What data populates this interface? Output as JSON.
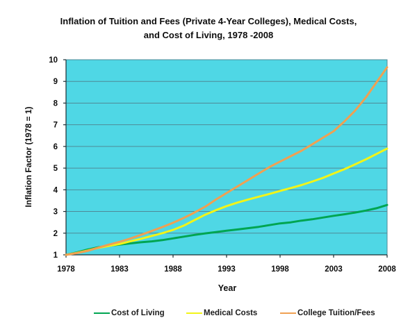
{
  "title": {
    "line1": "Inflation of Tuition  and Fees (Private 4-Year Colleges), Medical Costs,",
    "line2": "and Cost of Living, 1978 -2008"
  },
  "chart_data": {
    "type": "line",
    "title": "Inflation of Tuition and Fees (Private 4-Year Colleges), Medical Costs, and Cost of Living, 1978-2008",
    "xlabel": "Year",
    "ylabel": "Inflation Factor (1978 = 1)",
    "xlim": [
      1978,
      2008
    ],
    "ylim": [
      1,
      10
    ],
    "grid": "horizontal",
    "legend_position": "bottom",
    "plot_bg_color": "#4FD7E5",
    "grid_color": "#4F8A97",
    "axis_color": "#1a2e33",
    "x_ticks": [
      1978,
      1983,
      1988,
      1993,
      1998,
      2003,
      2008
    ],
    "x_tick_labels": [
      "1978",
      "1983",
      "1988",
      "1993",
      "1998",
      "2003",
      "2008"
    ],
    "y_ticks": [
      1,
      2,
      3,
      4,
      5,
      6,
      7,
      8,
      9,
      10
    ],
    "y_tick_labels": [
      "1",
      "2",
      "3",
      "4",
      "5",
      "6",
      "7",
      "8",
      "9",
      "10"
    ],
    "x": [
      1978,
      1979,
      1980,
      1981,
      1982,
      1983,
      1984,
      1985,
      1986,
      1987,
      1988,
      1989,
      1990,
      1991,
      1992,
      1993,
      1994,
      1995,
      1996,
      1997,
      1998,
      1999,
      2000,
      2001,
      2002,
      2003,
      2004,
      2005,
      2006,
      2007,
      2008
    ],
    "series": [
      {
        "name": "Cost of Living",
        "color": "#00A551",
        "values": [
          1.0,
          1.11,
          1.24,
          1.35,
          1.42,
          1.47,
          1.53,
          1.58,
          1.62,
          1.68,
          1.76,
          1.84,
          1.92,
          1.99,
          2.05,
          2.11,
          2.17,
          2.23,
          2.29,
          2.37,
          2.45,
          2.5,
          2.58,
          2.64,
          2.72,
          2.8,
          2.87,
          2.95,
          3.04,
          3.15,
          3.3
        ]
      },
      {
        "name": "Medical Costs",
        "color": "#F2F418",
        "values": [
          1.0,
          1.09,
          1.2,
          1.32,
          1.41,
          1.5,
          1.62,
          1.74,
          1.87,
          2.0,
          2.15,
          2.35,
          2.6,
          2.85,
          3.06,
          3.25,
          3.41,
          3.55,
          3.68,
          3.81,
          3.95,
          4.08,
          4.22,
          4.38,
          4.55,
          4.75,
          4.95,
          5.17,
          5.4,
          5.65,
          5.9
        ]
      },
      {
        "name": "College Tuition/Fees",
        "color": "#F0A052",
        "values": [
          1.0,
          1.08,
          1.18,
          1.33,
          1.47,
          1.6,
          1.75,
          1.92,
          2.1,
          2.28,
          2.48,
          2.7,
          2.95,
          3.22,
          3.55,
          3.85,
          4.15,
          4.45,
          4.75,
          5.05,
          5.3,
          5.55,
          5.8,
          6.1,
          6.4,
          6.7,
          7.15,
          7.65,
          8.25,
          8.95,
          9.65
        ]
      }
    ]
  }
}
